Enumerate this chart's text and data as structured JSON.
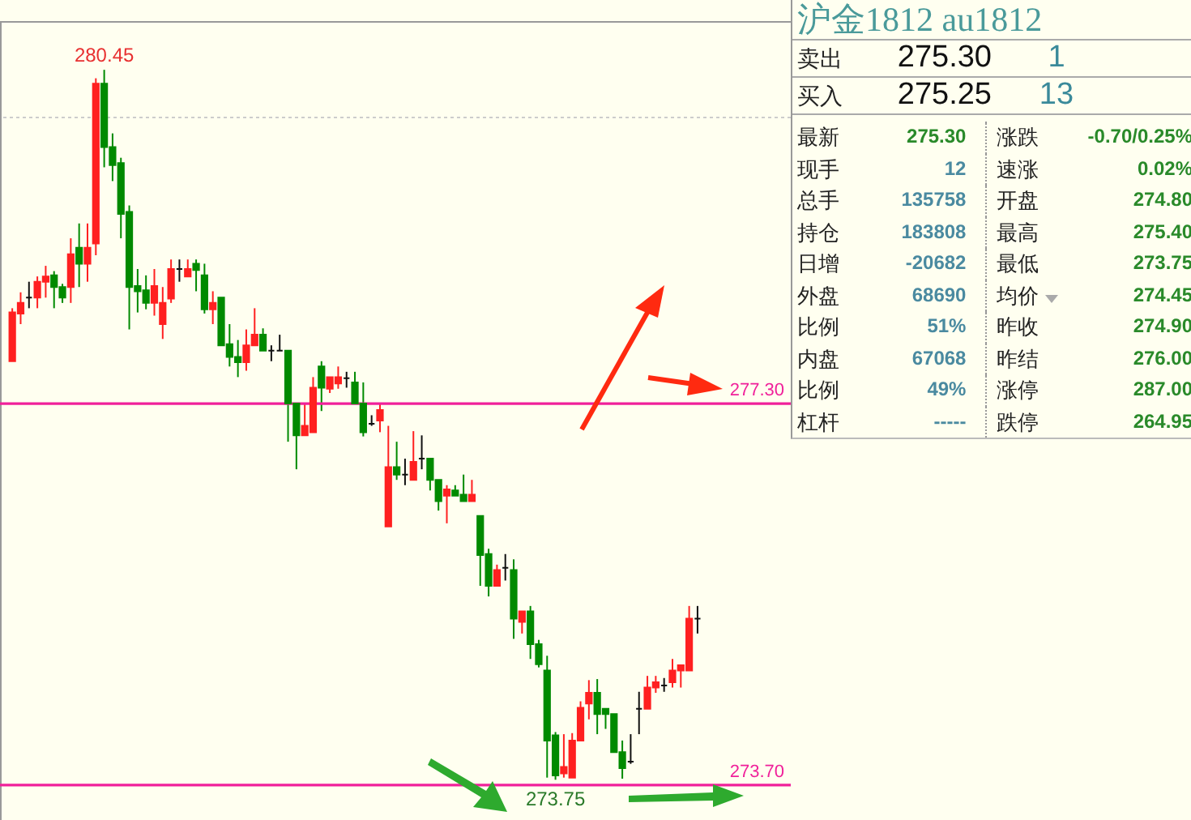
{
  "chart_data": [
    {
      "type": "candlestick",
      "relative": false,
      "categories": [
        null,
        null,
        null,
        null,
        null,
        null,
        null,
        null,
        null,
        null,
        null,
        null,
        null,
        null,
        null,
        null,
        null,
        null,
        null,
        null,
        null,
        null,
        null,
        null,
        null,
        null,
        null,
        null,
        null,
        null,
        null,
        null,
        null,
        null,
        null,
        null,
        null,
        null,
        null,
        null,
        null,
        null,
        null,
        null,
        null,
        null,
        null,
        null,
        null,
        null,
        null,
        null,
        null,
        null,
        null,
        null,
        null,
        null,
        null,
        null,
        null,
        null,
        null,
        null,
        null,
        null,
        null,
        null,
        null,
        null,
        null,
        null,
        null,
        null,
        null,
        null,
        null,
        null,
        null,
        null,
        null,
        null,
        null
      ],
      "ohlc": [
        [
          277.7,
          278.2,
          277.7,
          278.16
        ],
        [
          278.15,
          278.35,
          278.05,
          278.25
        ],
        [
          278.3,
          278.45,
          278.2,
          278.3
        ],
        [
          278.3,
          278.5,
          278.2,
          278.45
        ],
        [
          278.45,
          278.6,
          278.3,
          278.5
        ],
        [
          278.51,
          278.55,
          278.2,
          278.4
        ],
        [
          278.4,
          278.43,
          278.25,
          278.3
        ],
        [
          278.4,
          278.86,
          278.25,
          278.71
        ],
        [
          278.77,
          279.0,
          278.4,
          278.62
        ],
        [
          278.62,
          279.0,
          278.45,
          278.77
        ],
        [
          278.81,
          280.37,
          278.7,
          280.32
        ],
        [
          280.32,
          280.45,
          279.53,
          279.72
        ],
        [
          279.72,
          279.85,
          279.4,
          279.55
        ],
        [
          279.57,
          279.62,
          278.86,
          279.09
        ],
        [
          279.11,
          279.17,
          278.0,
          278.4
        ],
        [
          278.41,
          278.57,
          278.16,
          278.36
        ],
        [
          278.37,
          278.51,
          278.19,
          278.25
        ],
        [
          278.25,
          278.57,
          278.13,
          278.41
        ],
        [
          278.05,
          278.4,
          277.91,
          278.25
        ],
        [
          278.29,
          278.66,
          278.25,
          278.57
        ],
        [
          278.57,
          278.66,
          278.45,
          278.57
        ],
        [
          278.5,
          278.66,
          278.5,
          278.57
        ],
        [
          278.62,
          278.66,
          278.36,
          278.56
        ],
        [
          278.51,
          278.62,
          278.15,
          278.19
        ],
        [
          278.19,
          278.36,
          278.05,
          278.25
        ],
        [
          278.3,
          278.3,
          277.85,
          277.85
        ],
        [
          277.86,
          278.05,
          277.65,
          277.74
        ],
        [
          277.74,
          277.9,
          277.55,
          277.69
        ],
        [
          277.69,
          278.0,
          277.61,
          277.85
        ],
        [
          277.85,
          278.2,
          277.85,
          277.95
        ],
        [
          277.95,
          278.01,
          277.8,
          277.8
        ],
        [
          277.8,
          277.85,
          277.7,
          277.8
        ],
        [
          277.8,
          277.95,
          277.8,
          277.8
        ],
        [
          277.8,
          277.8,
          276.94,
          277.3
        ],
        [
          277.3,
          277.3,
          276.68,
          277.0
        ],
        [
          277.0,
          277.3,
          277.0,
          277.09
        ],
        [
          277.03,
          277.55,
          277.03,
          277.45
        ],
        [
          277.65,
          277.7,
          277.23,
          277.45
        ],
        [
          277.44,
          277.55,
          277.4,
          277.55
        ],
        [
          277.49,
          277.65,
          277.44,
          277.55
        ],
        [
          277.54,
          277.6,
          277.45,
          277.54
        ],
        [
          277.5,
          277.6,
          277.3,
          277.3
        ],
        [
          277.3,
          277.5,
          276.99,
          277.03
        ],
        [
          277.11,
          277.19,
          277.09,
          277.11
        ],
        [
          277.14,
          277.3,
          277.03,
          277.24
        ],
        [
          276.14,
          277.09,
          276.14,
          276.7
        ],
        [
          276.7,
          276.94,
          276.58,
          276.63
        ],
        [
          276.63,
          276.78,
          276.53,
          276.63
        ],
        [
          276.58,
          277.04,
          276.58,
          276.75
        ],
        [
          276.78,
          277.0,
          276.68,
          276.78
        ],
        [
          276.78,
          276.78,
          276.48,
          276.58
        ],
        [
          276.58,
          276.58,
          276.29,
          276.38
        ],
        [
          276.43,
          276.53,
          276.17,
          276.49
        ],
        [
          276.48,
          276.53,
          276.43,
          276.43
        ],
        [
          276.44,
          276.63,
          276.38,
          276.38
        ],
        [
          276.38,
          276.58,
          276.38,
          276.44
        ],
        [
          276.24,
          276.24,
          275.58,
          275.87
        ],
        [
          275.88,
          275.93,
          275.48,
          275.58
        ],
        [
          275.58,
          275.78,
          275.58,
          275.73
        ],
        [
          275.75,
          275.88,
          275.63,
          275.75
        ],
        [
          275.73,
          275.83,
          275.08,
          275.27
        ],
        [
          275.24,
          275.34,
          275.13,
          275.34
        ],
        [
          275.34,
          275.39,
          274.89,
          275.03
        ],
        [
          275.03,
          275.07,
          274.81,
          274.84
        ],
        [
          274.78,
          274.92,
          273.77,
          274.12
        ],
        [
          274.17,
          274.2,
          273.75,
          273.79
        ],
        [
          273.81,
          274.18,
          273.77,
          273.87
        ],
        [
          273.77,
          274.19,
          273.77,
          274.12
        ],
        [
          274.12,
          274.49,
          274.12,
          274.43
        ],
        [
          274.47,
          274.69,
          274.32,
          274.57
        ],
        [
          274.57,
          274.7,
          274.18,
          274.37
        ],
        [
          274.42,
          274.42,
          274.23,
          274.37
        ],
        [
          274.37,
          274.37,
          274.01,
          274.01
        ],
        [
          274.01,
          274.12,
          273.76,
          273.86
        ],
        [
          273.92,
          274.18,
          273.9,
          273.92
        ],
        [
          274.42,
          274.58,
          274.18,
          274.42
        ],
        [
          274.42,
          274.73,
          274.42,
          274.62
        ],
        [
          274.62,
          274.73,
          274.57,
          274.67
        ],
        [
          274.64,
          274.71,
          274.58,
          274.64
        ],
        [
          274.67,
          274.89,
          274.62,
          274.78
        ],
        [
          274.78,
          274.83,
          274.62,
          274.83
        ],
        [
          274.78,
          275.39,
          274.78,
          275.27
        ],
        [
          275.27,
          275.39,
          275.13,
          275.27
        ]
      ],
      "ylim": [
        273.37,
        280.91
      ],
      "tick_labels": false,
      "ref_lines": [
        {
          "axis": "y",
          "value": 277.3,
          "label": "277.30",
          "color": "#f0209a"
        },
        {
          "axis": "y",
          "value": 273.7,
          "label": "273.70",
          "color": "#f0209a"
        },
        {
          "axis": "y",
          "value": 280.0,
          "label": null,
          "color": "#cccccc",
          "line_style": "dotted"
        }
      ],
      "annotations": [
        {
          "text": "280.45",
          "y": 280.45
        },
        {
          "text": "273.75",
          "y": 273.75
        }
      ]
    },
    {
      "type": "other",
      "title": "沪金1812 au1812",
      "annotations": [
        "卖出",
        "275.30",
        "1",
        "买入",
        "275.25",
        "13",
        "最新",
        "275.30",
        "涨跌",
        "-0.70/0.25%",
        "现手",
        "12",
        "速涨",
        "0.02%",
        "总手",
        "135758",
        "开盘",
        "274.80",
        "持仓",
        "183808",
        "最高",
        "275.40",
        "日增",
        "-20682",
        "最低",
        "273.75",
        "外盘",
        "68690",
        "均价",
        "274.45",
        "比例",
        "51%",
        "昨收",
        "274.90",
        "内盘",
        "67068",
        "昨结",
        "276.00",
        "比例",
        "49%",
        "涨停",
        "287.00",
        "杠杆",
        "-----",
        "跌停",
        "264.95"
      ]
    }
  ]
}
